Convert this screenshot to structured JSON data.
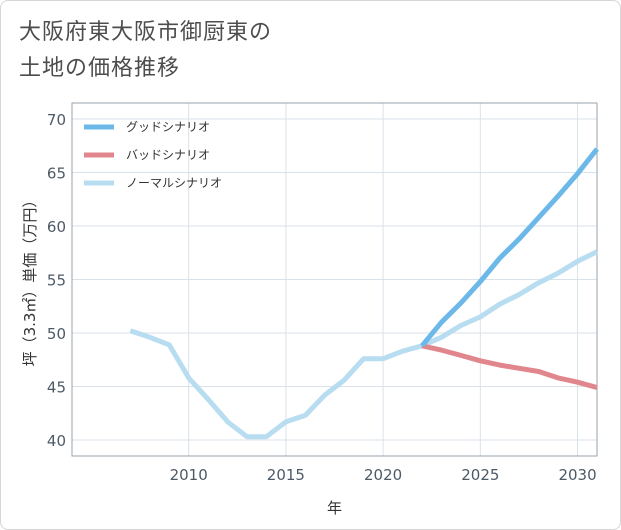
{
  "title_lines": [
    "大阪府東大阪市御厨東の",
    "土地の価格推移"
  ],
  "chart_data": {
    "type": "line",
    "title": "大阪府東大阪市御厨東の土地の価格推移",
    "xlabel": "年",
    "ylabel": "坪（3.3㎡）単価（万円）",
    "xlim": [
      2004,
      2031
    ],
    "ylim": [
      38.5,
      71.5
    ],
    "xticks": [
      2010,
      2015,
      2020,
      2025,
      2030
    ],
    "yticks": [
      40,
      45,
      50,
      55,
      60,
      65,
      70
    ],
    "grid": true,
    "legend_position": "top-left",
    "series": [
      {
        "name": "グッドシナリオ",
        "color": "#6cb8e8",
        "x": [
          2022,
          2023,
          2024,
          2025,
          2026,
          2027,
          2028,
          2029,
          2030,
          2031
        ],
        "y": [
          48.8,
          51.0,
          52.8,
          54.8,
          57.0,
          58.8,
          60.8,
          62.8,
          64.9,
          67.2
        ]
      },
      {
        "name": "バッドシナリオ",
        "color": "#e0868c",
        "x": [
          2022,
          2023,
          2024,
          2025,
          2026,
          2027,
          2028,
          2029,
          2030,
          2031
        ],
        "y": [
          48.8,
          48.4,
          47.9,
          47.4,
          47.0,
          46.7,
          46.4,
          45.8,
          45.4,
          44.9
        ]
      },
      {
        "name": "ノーマルシナリオ",
        "color": "#b8dcf0",
        "x": [
          2007,
          2008,
          2009,
          2010,
          2011,
          2012,
          2013,
          2014,
          2015,
          2016,
          2017,
          2018,
          2019,
          2020,
          2021,
          2022,
          2023,
          2024,
          2025,
          2026,
          2027,
          2028,
          2029,
          2030,
          2031
        ],
        "y": [
          50.2,
          49.6,
          48.9,
          45.8,
          43.8,
          41.7,
          40.3,
          40.3,
          41.7,
          42.3,
          44.2,
          45.6,
          47.6,
          47.6,
          48.3,
          48.8,
          49.6,
          50.7,
          51.5,
          52.7,
          53.6,
          54.7,
          55.6,
          56.7,
          57.6
        ]
      }
    ]
  }
}
